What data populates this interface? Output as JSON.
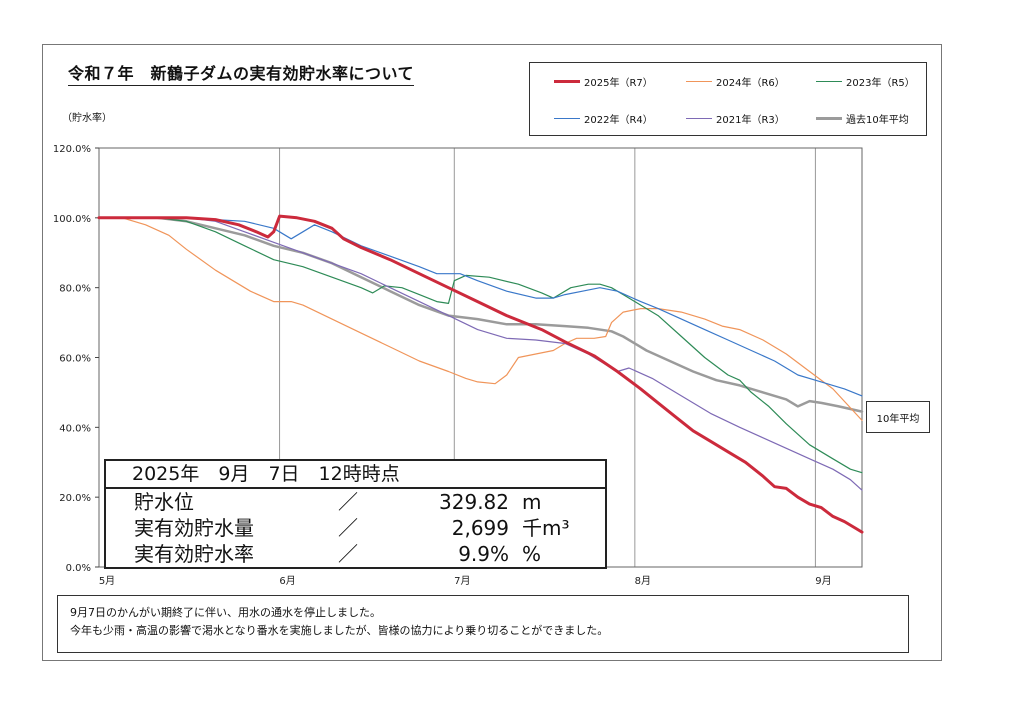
{
  "page": {
    "title": "令和７年　新鶴子ダムの実有効貯水率について",
    "y_axis_label": "（貯水率）",
    "avg_tag": "10年平均"
  },
  "info": {
    "header": "2025年　9月　7日　12時時点",
    "rows": [
      {
        "label": "貯水位",
        "sep": "／",
        "value": "329.82",
        "unit": "m"
      },
      {
        "label": "実有効貯水量",
        "sep": "／",
        "value": "2,699",
        "unit": "千m³"
      },
      {
        "label": "実有効貯水率",
        "sep": "／",
        "value": "9.9%",
        "unit": "%"
      }
    ]
  },
  "notes": [
    "9月7日のかんがい期終了に伴い、用水の通水を停止しました。",
    "今年も少雨・高温の影響で渇水となり番水を実施しましたが、皆様の協力により乗り切ることができました。"
  ],
  "chart_data": {
    "type": "line",
    "title": "令和７年　新鶴子ダムの実有効貯水率について",
    "ylabel": "（貯水率）",
    "xlabel": "",
    "x_unit": "days from May 1",
    "xlim": [
      0,
      131
    ],
    "ylim": [
      0,
      120
    ],
    "y_ticks": [
      0,
      20,
      40,
      60,
      80,
      100,
      120
    ],
    "y_tick_labels": [
      "0.0%",
      "20.0%",
      "40.0%",
      "60.0%",
      "80.0%",
      "100.0%",
      "120.0%"
    ],
    "x_ticks": [
      {
        "label": "5月",
        "day": 0
      },
      {
        "label": "6月",
        "day": 31
      },
      {
        "label": "7月",
        "day": 61
      },
      {
        "label": "8月",
        "day": 92
      },
      {
        "label": "9月",
        "day": 123
      }
    ],
    "legend_position": "top-right",
    "grid": "vertical-monthly",
    "series": [
      {
        "name": "2025年（R7）",
        "color": "#cc2a3c",
        "width": 3,
        "points": [
          [
            0,
            100
          ],
          [
            5,
            100
          ],
          [
            10,
            100
          ],
          [
            15,
            100
          ],
          [
            20,
            99.5
          ],
          [
            24,
            98
          ],
          [
            27,
            96
          ],
          [
            29,
            94.5
          ],
          [
            30,
            96
          ],
          [
            31,
            100.5
          ],
          [
            34,
            100
          ],
          [
            37,
            99
          ],
          [
            40,
            97
          ],
          [
            42,
            94
          ],
          [
            45,
            91.5
          ],
          [
            50,
            88
          ],
          [
            55,
            84
          ],
          [
            60,
            80
          ],
          [
            65,
            76
          ],
          [
            70,
            72
          ],
          [
            76,
            68
          ],
          [
            80,
            64.5
          ],
          [
            85,
            60.5
          ],
          [
            89,
            56
          ],
          [
            93,
            51
          ],
          [
            96,
            47
          ],
          [
            99,
            43
          ],
          [
            102,
            39
          ],
          [
            105,
            36
          ],
          [
            108,
            33
          ],
          [
            111,
            30
          ],
          [
            114,
            26
          ],
          [
            116,
            23
          ],
          [
            118,
            22.5
          ],
          [
            120,
            20
          ],
          [
            122,
            18
          ],
          [
            124,
            17
          ],
          [
            126,
            14.5
          ],
          [
            128,
            13
          ],
          [
            130,
            11
          ],
          [
            131,
            10
          ]
        ]
      },
      {
        "name": "2024年（R6）",
        "color": "#f0955a",
        "width": 1.2,
        "points": [
          [
            0,
            100
          ],
          [
            4,
            100
          ],
          [
            8,
            98
          ],
          [
            12,
            95
          ],
          [
            15,
            91
          ],
          [
            20,
            85
          ],
          [
            26,
            79
          ],
          [
            30,
            76
          ],
          [
            33,
            76
          ],
          [
            35,
            75
          ],
          [
            40,
            71
          ],
          [
            45,
            67
          ],
          [
            50,
            63
          ],
          [
            55,
            59
          ],
          [
            60,
            56
          ],
          [
            63,
            54
          ],
          [
            65,
            53
          ],
          [
            68,
            52.5
          ],
          [
            70,
            55
          ],
          [
            72,
            60
          ],
          [
            75,
            61
          ],
          [
            78,
            62
          ],
          [
            80,
            64
          ],
          [
            82,
            65.5
          ],
          [
            85,
            65.5
          ],
          [
            87,
            66
          ],
          [
            88,
            70
          ],
          [
            90,
            73
          ],
          [
            93,
            74
          ],
          [
            96,
            74
          ],
          [
            100,
            73
          ],
          [
            104,
            71
          ],
          [
            107,
            69
          ],
          [
            110,
            68
          ],
          [
            114,
            65
          ],
          [
            118,
            61
          ],
          [
            122,
            56
          ],
          [
            126,
            51
          ],
          [
            131,
            42
          ]
        ]
      },
      {
        "name": "2023年（R5）",
        "color": "#2e8b57",
        "width": 1.2,
        "points": [
          [
            0,
            100
          ],
          [
            5,
            100
          ],
          [
            10,
            100
          ],
          [
            15,
            99
          ],
          [
            20,
            96
          ],
          [
            25,
            92
          ],
          [
            30,
            88
          ],
          [
            35,
            86
          ],
          [
            40,
            83
          ],
          [
            45,
            80
          ],
          [
            47,
            78.5
          ],
          [
            49,
            80.5
          ],
          [
            52,
            80
          ],
          [
            55,
            78
          ],
          [
            58,
            76
          ],
          [
            60,
            75.5
          ],
          [
            61,
            82
          ],
          [
            63,
            83.5
          ],
          [
            67,
            83
          ],
          [
            72,
            81
          ],
          [
            76,
            78.5
          ],
          [
            78,
            77
          ],
          [
            81,
            80
          ],
          [
            84,
            81
          ],
          [
            86,
            81
          ],
          [
            88,
            80
          ],
          [
            90,
            78
          ],
          [
            93,
            75
          ],
          [
            96,
            72
          ],
          [
            100,
            66
          ],
          [
            104,
            60
          ],
          [
            108,
            55
          ],
          [
            110,
            53.5
          ],
          [
            112,
            50
          ],
          [
            115,
            46
          ],
          [
            118,
            41
          ],
          [
            122,
            35
          ],
          [
            126,
            31
          ],
          [
            129,
            28
          ],
          [
            131,
            27
          ]
        ]
      },
      {
        "name": "2022年（R4）",
        "color": "#3a78c9",
        "width": 1.2,
        "points": [
          [
            0,
            100
          ],
          [
            5,
            100
          ],
          [
            10,
            100
          ],
          [
            15,
            100
          ],
          [
            20,
            99.5
          ],
          [
            25,
            99
          ],
          [
            30,
            97
          ],
          [
            33,
            94
          ],
          [
            35,
            96
          ],
          [
            37,
            98
          ],
          [
            40,
            96
          ],
          [
            45,
            92
          ],
          [
            50,
            89
          ],
          [
            55,
            86
          ],
          [
            58,
            84
          ],
          [
            62,
            84
          ],
          [
            65,
            82
          ],
          [
            70,
            79
          ],
          [
            75,
            77
          ],
          [
            78,
            77
          ],
          [
            80,
            78
          ],
          [
            83,
            79
          ],
          [
            86,
            80
          ],
          [
            89,
            79
          ],
          [
            93,
            76
          ],
          [
            96,
            74
          ],
          [
            100,
            71
          ],
          [
            104,
            68
          ],
          [
            108,
            65
          ],
          [
            112,
            62
          ],
          [
            116,
            59
          ],
          [
            120,
            55
          ],
          [
            124,
            53
          ],
          [
            128,
            51
          ],
          [
            131,
            49
          ]
        ]
      },
      {
        "name": "2021年（R3）",
        "color": "#7e6ab5",
        "width": 1.2,
        "points": [
          [
            0,
            100
          ],
          [
            5,
            100
          ],
          [
            10,
            100
          ],
          [
            15,
            100
          ],
          [
            20,
            99
          ],
          [
            25,
            96
          ],
          [
            30,
            93
          ],
          [
            35,
            90
          ],
          [
            40,
            87
          ],
          [
            45,
            84
          ],
          [
            50,
            80
          ],
          [
            55,
            76
          ],
          [
            60,
            72
          ],
          [
            65,
            68
          ],
          [
            70,
            65.5
          ],
          [
            75,
            65
          ],
          [
            80,
            64
          ],
          [
            84,
            61
          ],
          [
            87,
            58
          ],
          [
            89,
            56
          ],
          [
            91,
            57
          ],
          [
            95,
            54
          ],
          [
            100,
            49
          ],
          [
            105,
            44
          ],
          [
            110,
            40
          ],
          [
            114,
            37
          ],
          [
            118,
            34
          ],
          [
            122,
            31
          ],
          [
            126,
            28
          ],
          [
            129,
            25
          ],
          [
            131,
            22
          ]
        ]
      },
      {
        "name": "過去10年平均",
        "color": "#9b9b9b",
        "width": 2.5,
        "points": [
          [
            0,
            100
          ],
          [
            5,
            100
          ],
          [
            10,
            100
          ],
          [
            15,
            99
          ],
          [
            20,
            97
          ],
          [
            25,
            95
          ],
          [
            30,
            92
          ],
          [
            35,
            90
          ],
          [
            40,
            87
          ],
          [
            45,
            83
          ],
          [
            50,
            79
          ],
          [
            55,
            75
          ],
          [
            60,
            72
          ],
          [
            65,
            71
          ],
          [
            70,
            69.5
          ],
          [
            75,
            69.5
          ],
          [
            80,
            69
          ],
          [
            84,
            68.5
          ],
          [
            88,
            67.5
          ],
          [
            90,
            66
          ],
          [
            94,
            62
          ],
          [
            98,
            59
          ],
          [
            102,
            56
          ],
          [
            106,
            53.5
          ],
          [
            110,
            52
          ],
          [
            114,
            50
          ],
          [
            118,
            48
          ],
          [
            120,
            46
          ],
          [
            122,
            47.5
          ],
          [
            124,
            47
          ],
          [
            127,
            46
          ],
          [
            131,
            44.5
          ]
        ]
      }
    ]
  }
}
